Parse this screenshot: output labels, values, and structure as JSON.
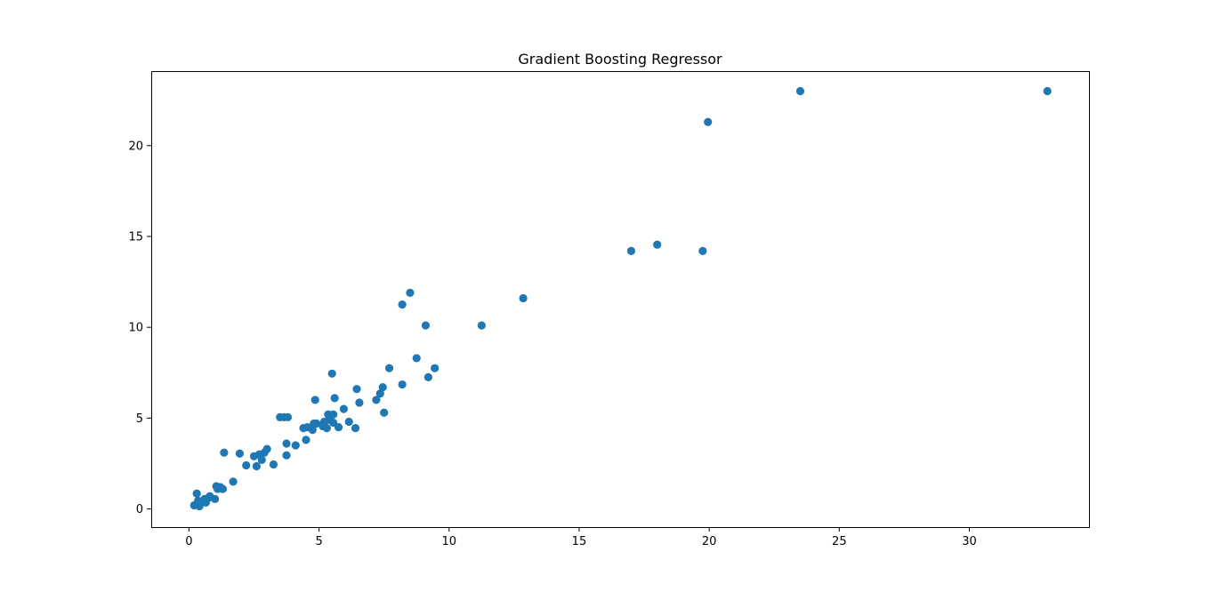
{
  "chart_data": {
    "type": "scatter",
    "title": "Gradient Boosting Regressor",
    "xlabel": "",
    "ylabel": "",
    "xlim": [
      -1.45,
      34.6
    ],
    "ylim": [
      -1.0,
      24.1
    ],
    "x_ticks": [
      0,
      5,
      10,
      15,
      20,
      25,
      30
    ],
    "x_tick_labels": [
      "0",
      "5",
      "10",
      "15",
      "20",
      "25",
      "30"
    ],
    "y_ticks": [
      0,
      5,
      10,
      15,
      20
    ],
    "y_tick_labels": [
      "0",
      "5",
      "10",
      "15",
      "20"
    ],
    "grid": false,
    "marker_color": "#1f77b4",
    "series": [
      {
        "points": [
          [
            0.2,
            0.2
          ],
          [
            0.3,
            0.25
          ],
          [
            0.35,
            0.45
          ],
          [
            0.4,
            0.15
          ],
          [
            0.45,
            0.3
          ],
          [
            0.3,
            0.85
          ],
          [
            0.55,
            0.45
          ],
          [
            0.6,
            0.55
          ],
          [
            0.65,
            0.35
          ],
          [
            0.75,
            0.6
          ],
          [
            0.8,
            0.7
          ],
          [
            1.0,
            0.55
          ],
          [
            1.05,
            1.25
          ],
          [
            1.1,
            1.1
          ],
          [
            1.2,
            1.2
          ],
          [
            1.3,
            1.1
          ],
          [
            1.35,
            3.1
          ],
          [
            1.7,
            1.5
          ],
          [
            1.95,
            3.05
          ],
          [
            2.2,
            2.4
          ],
          [
            2.5,
            2.9
          ],
          [
            2.6,
            2.35
          ],
          [
            2.7,
            3.0
          ],
          [
            2.8,
            2.7
          ],
          [
            2.9,
            3.1
          ],
          [
            3.0,
            3.3
          ],
          [
            3.25,
            2.45
          ],
          [
            3.5,
            5.05
          ],
          [
            3.65,
            5.05
          ],
          [
            3.8,
            5.05
          ],
          [
            3.75,
            3.6
          ],
          [
            3.75,
            2.95
          ],
          [
            4.1,
            3.5
          ],
          [
            4.4,
            4.45
          ],
          [
            4.5,
            3.8
          ],
          [
            4.55,
            4.5
          ],
          [
            4.75,
            4.35
          ],
          [
            4.8,
            4.7
          ],
          [
            4.9,
            4.7
          ],
          [
            4.85,
            6.0
          ],
          [
            5.15,
            4.55
          ],
          [
            5.2,
            4.8
          ],
          [
            5.3,
            4.45
          ],
          [
            5.35,
            5.2
          ],
          [
            5.4,
            4.9
          ],
          [
            5.5,
            7.45
          ],
          [
            5.55,
            4.75
          ],
          [
            5.55,
            5.2
          ],
          [
            5.6,
            6.1
          ],
          [
            5.75,
            4.5
          ],
          [
            5.95,
            5.5
          ],
          [
            6.15,
            4.8
          ],
          [
            6.4,
            4.45
          ],
          [
            6.45,
            6.6
          ],
          [
            6.55,
            5.85
          ],
          [
            7.2,
            6.0
          ],
          [
            7.35,
            6.35
          ],
          [
            7.45,
            6.7
          ],
          [
            7.5,
            5.3
          ],
          [
            7.7,
            7.75
          ],
          [
            8.2,
            6.85
          ],
          [
            8.2,
            11.25
          ],
          [
            8.5,
            11.9
          ],
          [
            8.75,
            8.3
          ],
          [
            9.1,
            10.1
          ],
          [
            9.2,
            7.25
          ],
          [
            9.45,
            7.75
          ],
          [
            11.25,
            10.1
          ],
          [
            12.85,
            11.6
          ],
          [
            17.0,
            14.2
          ],
          [
            18.0,
            14.55
          ],
          [
            19.75,
            14.2
          ],
          [
            19.95,
            21.3
          ],
          [
            23.5,
            23.0
          ],
          [
            33.0,
            23.0
          ]
        ]
      }
    ]
  }
}
